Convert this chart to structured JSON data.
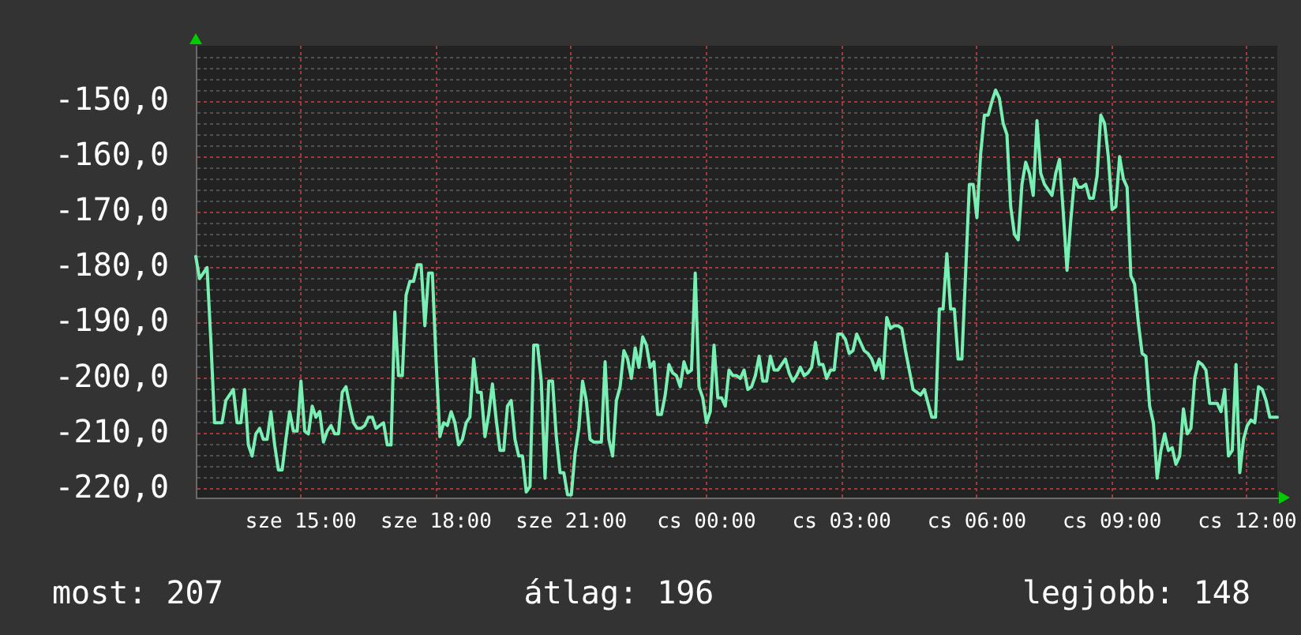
{
  "chart_data": {
    "type": "line",
    "color": "#78f0b4",
    "marker": "none",
    "grid": true,
    "categories": [
      null,
      null,
      null,
      null,
      null,
      null,
      null,
      null,
      null,
      null,
      null,
      null,
      null,
      null,
      null,
      null,
      null,
      null,
      null,
      null,
      null,
      null,
      null,
      null,
      null,
      null,
      null,
      null,
      "sze 15:00",
      null,
      null,
      null,
      null,
      null,
      null,
      null,
      null,
      null,
      null,
      null,
      null,
      null,
      null,
      null,
      null,
      null,
      null,
      null,
      null,
      null,
      null,
      null,
      null,
      null,
      null,
      null,
      null,
      null,
      null,
      null,
      null,
      null,
      null,
      null,
      "sze 18:00",
      null,
      null,
      null,
      null,
      null,
      null,
      null,
      null,
      null,
      null,
      null,
      null,
      null,
      null,
      null,
      null,
      null,
      null,
      null,
      null,
      null,
      null,
      null,
      null,
      null,
      null,
      null,
      null,
      null,
      null,
      null,
      null,
      null,
      null,
      null,
      "sze 21:00",
      null,
      null,
      null,
      null,
      null,
      null,
      null,
      null,
      null,
      null,
      null,
      null,
      null,
      null,
      null,
      null,
      null,
      null,
      null,
      null,
      null,
      null,
      null,
      null,
      null,
      null,
      null,
      null,
      null,
      null,
      null,
      null,
      null,
      null,
      null,
      "cs 00:00",
      null,
      null,
      null,
      null,
      null,
      null,
      null,
      null,
      null,
      null,
      null,
      null,
      null,
      null,
      null,
      null,
      null,
      null,
      null,
      null,
      null,
      null,
      null,
      null,
      null,
      null,
      null,
      null,
      null,
      null,
      null,
      null,
      null,
      null,
      null,
      "cs 03:00",
      null,
      null,
      null,
      null,
      null,
      null,
      null,
      null,
      null,
      null,
      null,
      null,
      null,
      null,
      null,
      null,
      null,
      null,
      null,
      null,
      null,
      null,
      null,
      null,
      null,
      null,
      null,
      null,
      null,
      null,
      null,
      null,
      null,
      null,
      null,
      "cs 06:00",
      null,
      null,
      null,
      null,
      null,
      null,
      null,
      null,
      null,
      null,
      null,
      null,
      null,
      null,
      null,
      null,
      null,
      null,
      null,
      null,
      null,
      null,
      null,
      null,
      null,
      null,
      null,
      null,
      null,
      null,
      null,
      null,
      null,
      null,
      null,
      "cs 09:00",
      null,
      null,
      null,
      null,
      null,
      null,
      null,
      null,
      null,
      null,
      null,
      null,
      null,
      null,
      null,
      null,
      null,
      null,
      null,
      null,
      null,
      null,
      null,
      null,
      null,
      null,
      null,
      null,
      null,
      null,
      null,
      null,
      null,
      null,
      null,
      "cs 12:00",
      null,
      null,
      null,
      null,
      null,
      null,
      null,
      null
    ],
    "values": [
      -178,
      -182,
      -181,
      -180,
      -193,
      -208,
      -208,
      -208,
      -204,
      -203,
      -202,
      -208,
      -208,
      -202,
      -212,
      -214,
      -210,
      -209,
      -211,
      -211,
      -206,
      -212,
      -216.5,
      -216.5,
      -211,
      -206,
      -209.5,
      -209.5,
      -200.5,
      -209.5,
      -210,
      -205,
      -207,
      -206,
      -211.5,
      -209.5,
      -208.5,
      -210,
      -210,
      -202.5,
      -201.5,
      -205,
      -208,
      -209,
      -209,
      -208.5,
      -207,
      -207,
      -209,
      -208.5,
      -208,
      -212,
      -212,
      -188,
      -199.5,
      -199.5,
      -185,
      -182.5,
      -182.5,
      -179.5,
      -179.5,
      -190.5,
      -181,
      -181,
      -197,
      -210.5,
      -208,
      -208.5,
      -206,
      -208,
      -212,
      -211,
      -208,
      -207,
      -196.5,
      -202.5,
      -202.5,
      -210.5,
      -206.5,
      -201,
      -207.5,
      -213,
      -213,
      -205,
      -204,
      -211,
      -214,
      -214,
      -220.5,
      -219.5,
      -194,
      -194,
      -200.5,
      -218,
      -200.5,
      -200.5,
      -210.5,
      -217,
      -217,
      -221,
      -221,
      -213.5,
      -209,
      -200.5,
      -204,
      -211,
      -211.5,
      -211.5,
      -211.5,
      -197,
      -211,
      -214,
      -204,
      -201.5,
      -195,
      -196.5,
      -200,
      -194.5,
      -198,
      -192.5,
      -194,
      -198,
      -197,
      -206.5,
      -206.5,
      -203,
      -197.5,
      -199,
      -199.5,
      -201.5,
      -197,
      -199,
      -198.5,
      -181,
      -201.5,
      -203.5,
      -208,
      -206,
      -194,
      -203.5,
      -203.5,
      -205,
      -198.5,
      -199.5,
      -199.5,
      -200,
      -198.5,
      -202,
      -201.5,
      -199.5,
      -196,
      -200.5,
      -200.5,
      -196,
      -198.5,
      -198.5,
      -197.5,
      -196.5,
      -199,
      -200.5,
      -199.5,
      -198,
      -199.5,
      -199,
      -198,
      -193.5,
      -197.5,
      -197.5,
      -200,
      -198.5,
      -198.5,
      -192,
      -192,
      -193,
      -195.5,
      -195,
      -192,
      -193.5,
      -195,
      -195.5,
      -196.5,
      -198.5,
      -196.5,
      -200,
      -189,
      -191,
      -190.5,
      -190.5,
      -191,
      -195,
      -198.5,
      -202,
      -202.5,
      -203,
      -202,
      -204.5,
      -207,
      -207,
      -187.5,
      -187.5,
      -177.5,
      -187.5,
      -187.5,
      -196.5,
      -196.5,
      -181,
      -165,
      -165,
      -171,
      -159.5,
      -152.5,
      -152.5,
      -150,
      -148,
      -149.5,
      -154,
      -156,
      -169,
      -174,
      -175,
      -165,
      -161,
      -163,
      -167,
      -153.5,
      -163,
      -165,
      -166,
      -167,
      -163,
      -160.5,
      -170,
      -180.5,
      -171.5,
      -164,
      -165.5,
      -165.5,
      -165,
      -167.5,
      -167.5,
      -163.5,
      -152.5,
      -154,
      -160,
      -169.5,
      -169,
      -160,
      -164,
      -165.5,
      -181.5,
      -183,
      -190,
      -195.5,
      -196,
      -205,
      -208,
      -218,
      -213,
      -210,
      -213,
      -212.5,
      -215.5,
      -214,
      -205.5,
      -210,
      -209,
      -200,
      -197,
      -197.5,
      -198.5,
      -204.5,
      -204.5,
      -204.5,
      -206,
      -202,
      -214,
      -213,
      -197.5,
      -217,
      -211,
      -208.5,
      -207.5,
      -208,
      -201.5,
      -202,
      -204,
      -207,
      -207,
      -207
    ],
    "ylim": [
      -221.5,
      -140
    ],
    "yticks": [
      {
        "value": -220,
        "label": "-220,0"
      },
      {
        "value": -218,
        "label": null
      },
      {
        "value": -216,
        "label": null
      },
      {
        "value": -214,
        "label": null
      },
      {
        "value": -212,
        "label": null
      },
      {
        "value": -210,
        "label": "-210,0"
      },
      {
        "value": -208,
        "label": null
      },
      {
        "value": -206,
        "label": null
      },
      {
        "value": -204,
        "label": null
      },
      {
        "value": -202,
        "label": null
      },
      {
        "value": -200,
        "label": "-200,0"
      },
      {
        "value": -198,
        "label": null
      },
      {
        "value": -196,
        "label": null
      },
      {
        "value": -194,
        "label": null
      },
      {
        "value": -192,
        "label": null
      },
      {
        "value": -190,
        "label": "-190,0"
      },
      {
        "value": -188,
        "label": null
      },
      {
        "value": -186,
        "label": null
      },
      {
        "value": -184,
        "label": null
      },
      {
        "value": -182,
        "label": null
      },
      {
        "value": -180,
        "label": "-180,0"
      },
      {
        "value": -178,
        "label": null
      },
      {
        "value": -176,
        "label": null
      },
      {
        "value": -174,
        "label": null
      },
      {
        "value": -172,
        "label": null
      },
      {
        "value": -170,
        "label": "-170,0"
      },
      {
        "value": -168,
        "label": null
      },
      {
        "value": -166,
        "label": null
      },
      {
        "value": -164,
        "label": null
      },
      {
        "value": -162,
        "label": null
      },
      {
        "value": -160,
        "label": "-160,0"
      },
      {
        "value": -158,
        "label": null
      },
      {
        "value": -156,
        "label": null
      },
      {
        "value": -154,
        "label": null
      },
      {
        "value": -152,
        "label": null
      },
      {
        "value": -150,
        "label": "-150,0"
      },
      {
        "value": -148,
        "label": null
      },
      {
        "value": -146,
        "label": null
      },
      {
        "value": -144,
        "label": null
      },
      {
        "value": -142,
        "label": null
      }
    ],
    "annotations": [
      "most: 207",
      "átlag: 196",
      "legjobb: 148"
    ]
  }
}
